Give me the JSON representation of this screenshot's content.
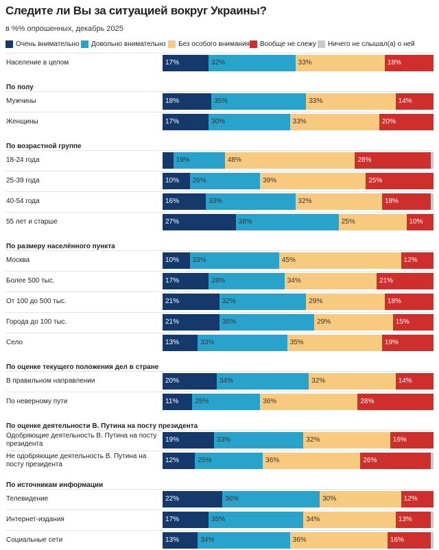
{
  "chart_data": {
    "type": "stacked-bar-horizontal",
    "title": "Следите ли Вы за ситуацией вокруг Украины?",
    "subtitle": "в %% опрошенных, декабрь 2025",
    "xlim": [
      0,
      100
    ],
    "groups": [
      {
        "categories": [
          "Население в целом"
        ]
      },
      {
        "title": "По полу",
        "categories": [
          "Мужчины",
          "Женщины"
        ]
      },
      {
        "title": "По возрастной группе",
        "categories": [
          "18-24 года",
          "25-39 года",
          "40-54 года",
          "55 лет и старше"
        ]
      },
      {
        "title": "По размеру населённого пункта",
        "categories": [
          "Москва",
          "Более 500 тыс.",
          "От 100 до 500 тыс.",
          "Города до 100 тыс.",
          "Село"
        ]
      },
      {
        "title": "По оценке текущего положения дел в стране",
        "categories": [
          "В правильном направлении",
          "По неверному пути"
        ]
      },
      {
        "title": "По оценке деятельности В. Путина на посту президента",
        "categories": [
          "Одобряющие деятельность В. Путина на посту президента",
          "Не одобряющие деятельность В. Путина на посту президента"
        ]
      },
      {
        "title": "По источникам информации",
        "categories": [
          "Телевидение",
          "Интернет-издания",
          "Социальные сети"
        ]
      }
    ],
    "series": [
      {
        "name": "Очень внимательно",
        "color": "#14396a",
        "values": [
          17,
          18,
          17,
          4,
          10,
          16,
          27,
          10,
          17,
          21,
          21,
          13,
          20,
          11,
          19,
          12,
          22,
          17,
          13
        ],
        "value_labels": [
          "17%",
          "18%",
          "17%",
          null,
          "10%",
          "16%",
          "27%",
          "10%",
          "17%",
          "21%",
          "21%",
          "13%",
          "20%",
          "11%",
          "19%",
          "12%",
          "22%",
          "17%",
          "13%"
        ]
      },
      {
        "name": "Довольно внимательно",
        "color": "#2aa3cc",
        "values": [
          32,
          35,
          30,
          19,
          26,
          33,
          38,
          33,
          28,
          32,
          35,
          33,
          34,
          25,
          33,
          25,
          36,
          35,
          34
        ],
        "value_labels": [
          "32%",
          "35%",
          "30%",
          "19%",
          "26%",
          "33%",
          "38%",
          "33%",
          "28%",
          "32%",
          "35%",
          "33%",
          "34%",
          "25%",
          "33%",
          "25%",
          "36%",
          "35%",
          "34%"
        ]
      },
      {
        "name": "Без особого внимания",
        "color": "#f8ca80",
        "values": [
          33,
          33,
          33,
          48,
          39,
          32,
          25,
          45,
          34,
          29,
          29,
          35,
          32,
          36,
          32,
          36,
          30,
          34,
          36
        ],
        "value_labels": [
          "33%",
          "33%",
          "33%",
          "48%",
          "39%",
          "32%",
          "25%",
          "45%",
          "34%",
          "29%",
          "29%",
          "35%",
          "32%",
          "36%",
          "32%",
          "36%",
          "30%",
          "34%",
          "36%"
        ]
      },
      {
        "name": "Вообще не слежу",
        "color": "#cf2f2c",
        "values": [
          18,
          14,
          20,
          28,
          25,
          18,
          10,
          12,
          21,
          18,
          15,
          19,
          14,
          28,
          16,
          26,
          12,
          13,
          16
        ],
        "value_labels": [
          "18%",
          "14%",
          "20%",
          "28%",
          "25%",
          "18%",
          "10%",
          "12%",
          "21%",
          "18%",
          "15%",
          "19%",
          "14%",
          "28%",
          "16%",
          "26%",
          "12%",
          "13%",
          "16%"
        ]
      },
      {
        "name": "Ничего не слышал(а) о ней",
        "color": "#c9c9c9",
        "values": [
          0,
          0,
          0,
          1,
          0,
          1,
          0,
          0,
          0,
          0,
          0,
          0,
          0,
          0,
          0,
          1,
          0,
          1,
          1
        ],
        "value_labels": [
          null,
          null,
          null,
          null,
          null,
          null,
          null,
          null,
          null,
          null,
          null,
          null,
          null,
          null,
          null,
          null,
          null,
          null,
          null
        ]
      }
    ]
  }
}
